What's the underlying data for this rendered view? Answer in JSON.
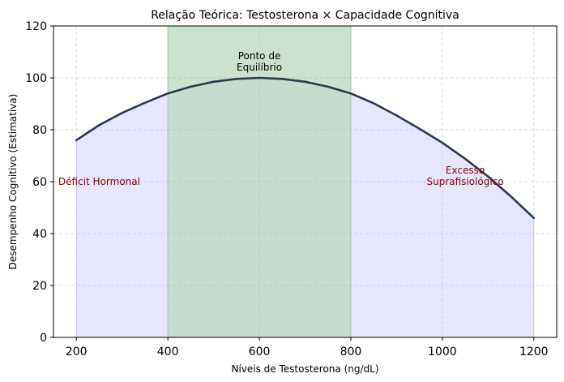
{
  "chart_data": {
    "type": "line",
    "title": "Relação Teórica: Testosterona × Capacidade Cognitiva",
    "xlabel": "Níveis de Testosterona (ng/dL)",
    "ylabel": "Desempenho Cognitivo (Estimativa)",
    "xlim": [
      150,
      1250
    ],
    "ylim": [
      0,
      120
    ],
    "xticks": [
      200,
      400,
      600,
      800,
      1000,
      1200
    ],
    "yticks": [
      0,
      20,
      40,
      60,
      80,
      100,
      120
    ],
    "grid": true,
    "series": [
      {
        "x": [
          200,
          250,
          300,
          350,
          400,
          450,
          500,
          550,
          600,
          650,
          700,
          750,
          800,
          850,
          900,
          950,
          1000,
          1050,
          1100,
          1150,
          1200
        ],
        "values": [
          76,
          81.8,
          86.5,
          90.4,
          94,
          96.6,
          98.5,
          99.6,
          100,
          99.6,
          98.5,
          96.6,
          94,
          90.2,
          85.5,
          80.4,
          75,
          68.8,
          62,
          54.3,
          46
        ],
        "color": "#2b3a4f"
      }
    ],
    "regions": [
      {
        "x_range": [
          200,
          1200
        ],
        "color": "#e6e6ff"
      },
      {
        "x_range": [
          400,
          800
        ],
        "color": "#b9d8bd"
      }
    ],
    "annotations": [
      {
        "text": "Ponto de\nEquilíbrio",
        "x": 600,
        "y": 104,
        "color": "#000000"
      },
      {
        "text": "Déficit Hormonal",
        "x": 250,
        "y": 60,
        "color": "#8b0000"
      },
      {
        "text": "Excesso\nSuprafisiológico",
        "x": 1050,
        "y": 60,
        "color": "#8b0000"
      }
    ]
  }
}
